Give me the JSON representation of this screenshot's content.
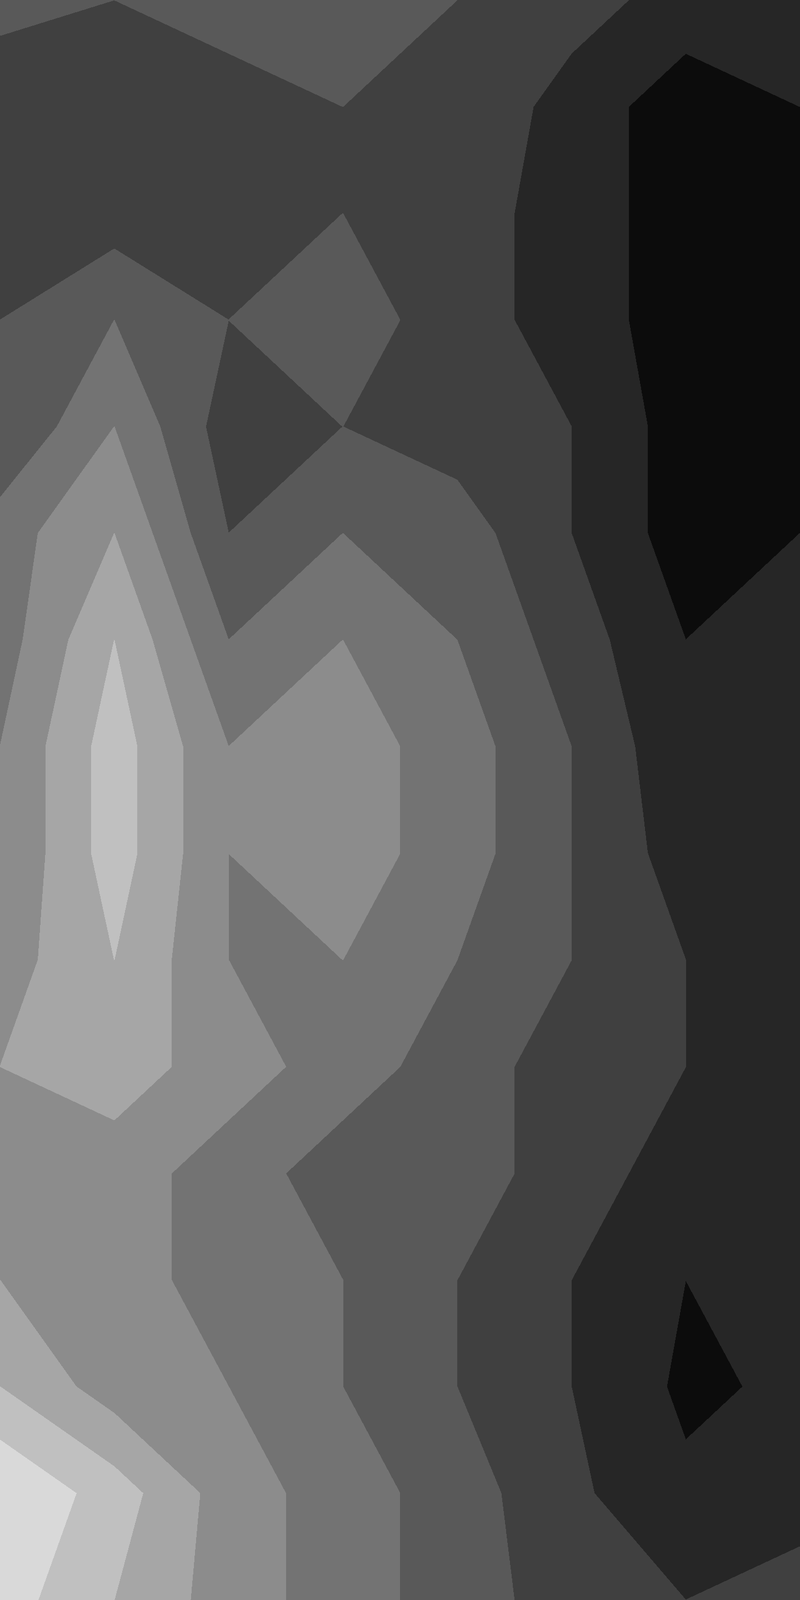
{
  "chart_data": {
    "type": "contour",
    "color": "gray",
    "tick_labels": false,
    "levels": [
      0.0,
      0.1,
      0.2,
      0.3,
      0.4,
      0.5,
      0.6,
      0.7,
      0.8,
      0.9,
      1.0
    ],
    "z": [
      [
        0.35,
        0.3,
        0.35,
        0.35,
        0.3,
        0.25,
        0.15,
        0.15
      ],
      [
        0.2,
        0.25,
        0.25,
        0.3,
        0.3,
        0.15,
        0.05,
        0.1
      ],
      [
        0.25,
        0.25,
        0.3,
        0.3,
        0.25,
        0.15,
        0.05,
        0.1
      ],
      [
        0.3,
        0.4,
        0.3,
        0.35,
        0.25,
        0.15,
        0.05,
        0.1
      ],
      [
        0.3,
        0.5,
        0.25,
        0.3,
        0.25,
        0.2,
        0.05,
        0.1
      ],
      [
        0.45,
        0.6,
        0.3,
        0.4,
        0.35,
        0.2,
        0.05,
        0.1
      ],
      [
        0.45,
        0.7,
        0.4,
        0.5,
        0.4,
        0.25,
        0.1,
        0.12
      ],
      [
        0.5,
        0.75,
        0.5,
        0.55,
        0.45,
        0.3,
        0.12,
        0.15
      ],
      [
        0.5,
        0.75,
        0.5,
        0.55,
        0.45,
        0.3,
        0.15,
        0.15
      ],
      [
        0.55,
        0.7,
        0.5,
        0.5,
        0.4,
        0.3,
        0.2,
        0.15
      ],
      [
        0.6,
        0.65,
        0.55,
        0.45,
        0.35,
        0.25,
        0.2,
        0.15
      ],
      [
        0.6,
        0.55,
        0.45,
        0.35,
        0.35,
        0.25,
        0.15,
        0.12
      ],
      [
        0.6,
        0.55,
        0.45,
        0.4,
        0.3,
        0.2,
        0.1,
        0.12
      ],
      [
        0.7,
        0.55,
        0.5,
        0.4,
        0.3,
        0.2,
        0.08,
        0.12
      ],
      [
        0.9,
        0.75,
        0.55,
        0.45,
        0.35,
        0.22,
        0.12,
        0.15
      ],
      [
        0.85,
        0.7,
        0.55,
        0.45,
        0.35,
        0.25,
        0.2,
        0.25
      ]
    ]
  }
}
